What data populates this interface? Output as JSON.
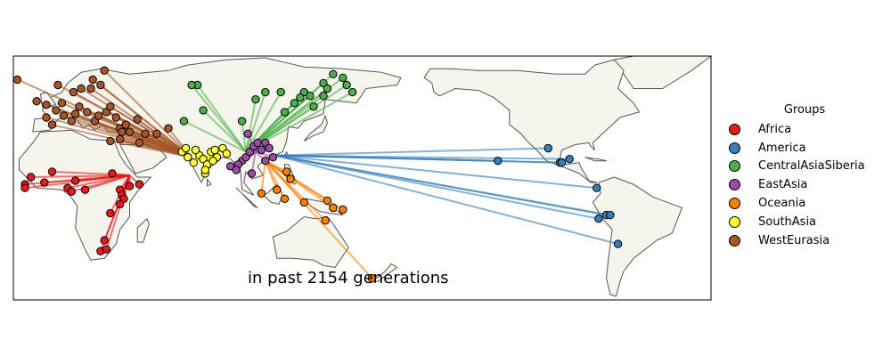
{
  "caption": "in past 2154 generations",
  "legend": {
    "title": "Groups",
    "items": [
      {
        "label": "Africa",
        "color": "#e41a1c"
      },
      {
        "label": "America",
        "color": "#377eb8"
      },
      {
        "label": "CentralAsiaSiberia",
        "color": "#4daf4a"
      },
      {
        "label": "EastAsia",
        "color": "#984ea3"
      },
      {
        "label": "Oceania",
        "color": "#ff7f00"
      },
      {
        "label": "SouthAsia",
        "color": "#ffff33"
      },
      {
        "label": "WestEurasia",
        "color": "#a65628"
      }
    ]
  },
  "map": {
    "projection": "Pacific-centered equirectangular",
    "lon_range": [
      -20,
      340
    ],
    "lat_range": [
      -57,
      78
    ],
    "land_color": "#f5f5ee",
    "coast_color": "#555555",
    "edge_color": "#cccccc"
  },
  "groups": [
    {
      "name": "Africa",
      "color": "#e41a1c",
      "hub": [
        40,
        12
      ],
      "samples": [
        [
          -11,
          11
        ],
        [
          -14,
          7
        ],
        [
          -14,
          5
        ],
        [
          -4,
          8
        ],
        [
          8,
          5
        ],
        [
          10,
          3
        ],
        [
          12,
          9
        ],
        [
          17,
          4
        ],
        [
          35,
          4
        ],
        [
          36,
          1
        ],
        [
          37,
          -1
        ],
        [
          35,
          -4
        ],
        [
          40,
          6
        ],
        [
          30,
          -9
        ],
        [
          27,
          -24
        ],
        [
          25,
          -30
        ],
        [
          28,
          -29
        ],
        [
          45,
          7
        ],
        [
          0,
          14
        ],
        [
          31,
          13
        ]
      ]
    },
    {
      "name": "America",
      "color": "#377eb8",
      "hub": [
        115,
        23
      ],
      "samples": [
        [
          256,
          27
        ],
        [
          262,
          19
        ],
        [
          263,
          19
        ],
        [
          267,
          21
        ],
        [
          281,
          5
        ],
        [
          286,
          -10
        ],
        [
          288,
          -10
        ],
        [
          282,
          -12
        ],
        [
          292,
          -26
        ],
        [
          230,
          20
        ]
      ]
    },
    {
      "name": "CentralAsiaSiberia",
      "color": "#4daf4a",
      "hub": [
        100,
        25
      ],
      "samples": [
        [
          75,
          62
        ],
        [
          78,
          48
        ],
        [
          105,
          54
        ],
        [
          110,
          58
        ],
        [
          120,
          47
        ],
        [
          125,
          52
        ],
        [
          130,
          58
        ],
        [
          133,
          56
        ],
        [
          140,
          56
        ],
        [
          145,
          68
        ],
        [
          155,
          58
        ],
        [
          150,
          66
        ],
        [
          152,
          62
        ],
        [
          140,
          63
        ],
        [
          68,
          42
        ],
        [
          98,
          42
        ],
        [
          72,
          62
        ],
        [
          128,
          55
        ],
        [
          135,
          50
        ],
        [
          118,
          58
        ],
        [
          142,
          60
        ]
      ]
    },
    {
      "name": "EastAsia",
      "color": "#984ea3",
      "hub": [
        105,
        25
      ],
      "samples": [
        [
          98,
          20
        ],
        [
          100,
          22
        ],
        [
          102,
          25
        ],
        [
          104,
          28
        ],
        [
          106,
          30
        ],
        [
          108,
          26
        ],
        [
          110,
          30
        ],
        [
          112,
          27
        ],
        [
          101,
          35
        ],
        [
          92,
          17
        ],
        [
          96,
          18
        ],
        [
          95,
          15
        ],
        [
          103,
          13
        ],
        [
          114,
          22
        ],
        [
          110,
          20
        ]
      ]
    },
    {
      "name": "Oceania",
      "color": "#ff7f00",
      "hub": [
        110,
        20
      ],
      "samples": [
        [
          145,
          -6
        ],
        [
          150,
          -7
        ],
        [
          141,
          -13
        ],
        [
          142,
          -2
        ],
        [
          165,
          -45
        ],
        [
          116,
          4
        ],
        [
          108,
          2
        ],
        [
          121,
          14
        ],
        [
          123,
          10
        ],
        [
          120,
          -1
        ],
        [
          130,
          -3
        ]
      ]
    },
    {
      "name": "SouthAsia",
      "color": "#ffff33",
      "hub": [
        80,
        22
      ],
      "samples": [
        [
          67,
          25
        ],
        [
          70,
          22
        ],
        [
          73,
          19
        ],
        [
          76,
          23
        ],
        [
          78,
          21
        ],
        [
          80,
          18
        ],
        [
          82,
          25
        ],
        [
          85,
          22
        ],
        [
          88,
          27
        ],
        [
          90,
          24
        ],
        [
          74,
          26
        ],
        [
          79,
          13
        ],
        [
          83,
          20
        ],
        [
          69,
          27
        ],
        [
          84,
          26
        ],
        [
          79,
          15
        ]
      ]
    },
    {
      "name": "WestEurasia",
      "color": "#a65628",
      "hub": [
        72,
        22
      ],
      "samples": [
        [
          -18,
          65
        ],
        [
          3,
          62
        ],
        [
          11,
          58
        ],
        [
          21,
          65
        ],
        [
          27,
          70
        ],
        [
          20,
          60
        ],
        [
          25,
          62
        ],
        [
          -8,
          53
        ],
        [
          -3,
          51
        ],
        [
          2,
          48
        ],
        [
          5,
          52
        ],
        [
          0,
          40
        ],
        [
          6,
          45
        ],
        [
          10,
          42
        ],
        [
          14,
          50
        ],
        [
          18,
          47
        ],
        [
          22,
          42
        ],
        [
          24,
          45
        ],
        [
          28,
          47
        ],
        [
          30,
          50
        ],
        [
          33,
          44
        ],
        [
          35,
          38
        ],
        [
          38,
          40
        ],
        [
          44,
          43
        ],
        [
          40,
          36
        ],
        [
          30,
          31
        ],
        [
          35,
          32
        ],
        [
          45,
          30
        ],
        [
          48,
          35
        ],
        [
          54,
          35
        ],
        [
          60,
          38
        ],
        [
          36,
          36
        ],
        [
          -3,
          44
        ],
        [
          12,
          46
        ],
        [
          15,
          60
        ]
      ]
    }
  ]
}
